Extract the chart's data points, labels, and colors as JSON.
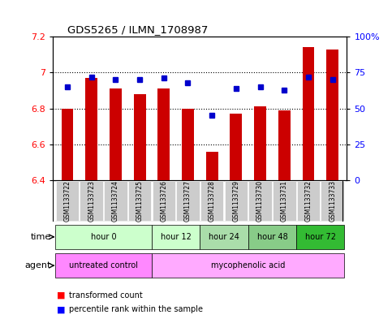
{
  "title": "GDS5265 / ILMN_1708987",
  "samples": [
    "GSM1133722",
    "GSM1133723",
    "GSM1133724",
    "GSM1133725",
    "GSM1133726",
    "GSM1133727",
    "GSM1133728",
    "GSM1133729",
    "GSM1133730",
    "GSM1133731",
    "GSM1133732",
    "GSM1133733"
  ],
  "bar_values": [
    6.8,
    6.97,
    6.91,
    6.88,
    6.91,
    6.8,
    6.56,
    6.77,
    6.81,
    6.79,
    7.14,
    7.13
  ],
  "dot_values": [
    65,
    72,
    70,
    70,
    71,
    68,
    45,
    64,
    65,
    63,
    72,
    70
  ],
  "ylim_left": [
    6.4,
    7.2
  ],
  "ylim_right": [
    0,
    100
  ],
  "yticks_left": [
    6.4,
    6.6,
    6.8,
    7.0,
    7.2
  ],
  "yticks_right": [
    0,
    25,
    50,
    75,
    100
  ],
  "ytick_labels_left": [
    "6.4",
    "6.6",
    "6.8",
    "7",
    "7.2"
  ],
  "ytick_labels_right": [
    "0",
    "25",
    "50",
    "75",
    "100%"
  ],
  "bar_color": "#cc0000",
  "dot_color": "#0000cc",
  "bar_bottom": 6.4,
  "grid_lines": [
    6.6,
    6.8,
    7.0
  ],
  "time_groups": [
    {
      "label": "hour 0",
      "start": 0,
      "end": 4,
      "color": "#ccffcc"
    },
    {
      "label": "hour 12",
      "start": 4,
      "end": 6,
      "color": "#ccffcc"
    },
    {
      "label": "hour 24",
      "start": 6,
      "end": 8,
      "color": "#aaddaa"
    },
    {
      "label": "hour 48",
      "start": 8,
      "end": 10,
      "color": "#88cc88"
    },
    {
      "label": "hour 72",
      "start": 10,
      "end": 12,
      "color": "#33bb33"
    }
  ],
  "agent_groups": [
    {
      "label": "untreated control",
      "start": 0,
      "end": 4,
      "color": "#ff88ff"
    },
    {
      "label": "mycophenolic acid",
      "start": 4,
      "end": 12,
      "color": "#ffaaff"
    }
  ],
  "legend_bar_label": "transformed count",
  "legend_dot_label": "percentile rank within the sample",
  "sample_bg_color": "#cccccc",
  "time_label": "time",
  "agent_label": "agent"
}
